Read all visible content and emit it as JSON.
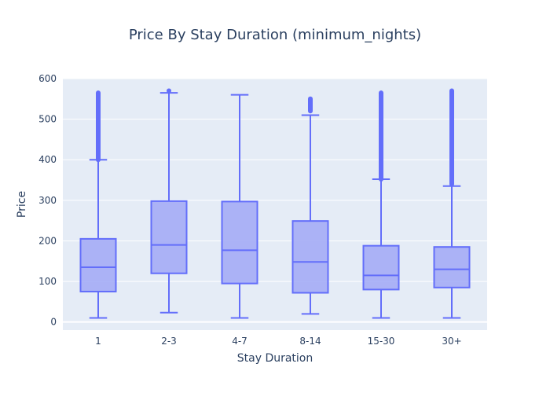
{
  "chart_data": {
    "type": "box",
    "title": "Price By Stay Duration (minimum_nights)",
    "xlabel": "Stay Duration",
    "ylabel": "Price",
    "ylim": [
      -20,
      600
    ],
    "yticks": [
      0,
      100,
      200,
      300,
      400,
      500,
      600
    ],
    "grid": true,
    "colors": {
      "plot_bg": "#e5ecf6",
      "box_fill": "#a4acf6",
      "box_line": "#636efa",
      "grid": "#ffffff",
      "text": "#2a3f5f"
    },
    "categories": [
      "1",
      "2-3",
      "4-7",
      "8-14",
      "15-30",
      "30+"
    ],
    "boxes": [
      {
        "category": "1",
        "min": 10,
        "q1": 75,
        "median": 135,
        "q3": 205,
        "max": 400,
        "outliers_from": 400,
        "outliers_to": 565
      },
      {
        "category": "2-3",
        "min": 23,
        "q1": 120,
        "median": 190,
        "q3": 298,
        "max": 565,
        "outliers_from": 570,
        "outliers_to": 571
      },
      {
        "category": "4-7",
        "min": 10,
        "q1": 95,
        "median": 177,
        "q3": 297,
        "max": 560,
        "outliers_from": null,
        "outliers_to": null
      },
      {
        "category": "8-14",
        "min": 20,
        "q1": 72,
        "median": 148,
        "q3": 249,
        "max": 510,
        "outliers_from": 520,
        "outliers_to": 550
      },
      {
        "category": "15-30",
        "min": 10,
        "q1": 80,
        "median": 115,
        "q3": 188,
        "max": 352,
        "outliers_from": 352,
        "outliers_to": 565
      },
      {
        "category": "30+",
        "min": 10,
        "q1": 85,
        "median": 130,
        "q3": 185,
        "max": 335,
        "outliers_from": 340,
        "outliers_to": 570
      }
    ]
  }
}
